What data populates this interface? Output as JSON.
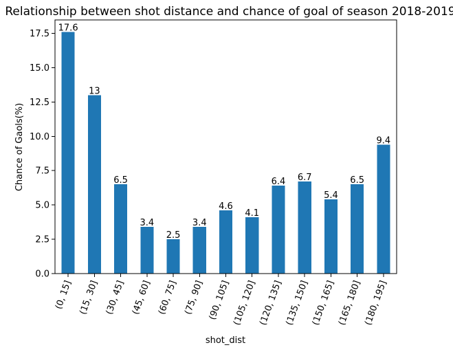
{
  "chart_data": {
    "type": "bar",
    "title": "Relationship between shot distance and chance of goal of season 2018-2019",
    "xlabel": "shot_dist",
    "ylabel": "Chance of Gaols(%)",
    "categories": [
      "(0, 15]",
      "(15, 30]",
      "(30, 45]",
      "(45, 60]",
      "(60, 75]",
      "(75, 90]",
      "(90, 105]",
      "(105, 120]",
      "(120, 135]",
      "(135, 150]",
      "(150, 165]",
      "(165, 180]",
      "(180, 195]"
    ],
    "values": [
      17.6,
      13,
      6.5,
      3.4,
      2.5,
      3.4,
      4.6,
      4.1,
      6.4,
      6.7,
      5.4,
      6.5,
      9.4
    ],
    "value_labels": [
      "17.6",
      "13",
      "6.5",
      "3.4",
      "2.5",
      "3.4",
      "4.6",
      "4.1",
      "6.4",
      "6.7",
      "5.4",
      "6.5",
      "9.4"
    ],
    "yticks": [
      "0.0",
      "2.5",
      "5.0",
      "7.5",
      "10.0",
      "12.5",
      "15.0",
      "17.5"
    ],
    "ylim": [
      0,
      18.48
    ],
    "grid": false,
    "legend": false,
    "bar_color": "#1f77b4"
  }
}
